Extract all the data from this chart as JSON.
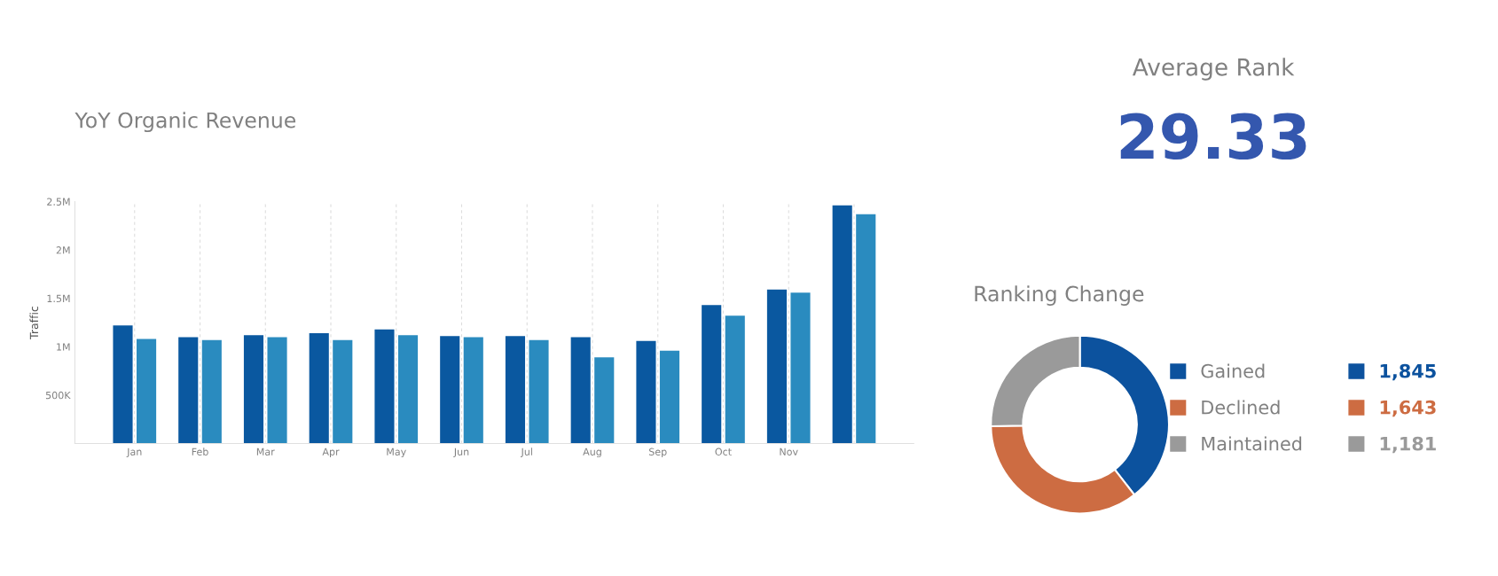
{
  "chart_data": [
    {
      "type": "bar",
      "title": "YoY Organic Revenue",
      "ylabel": "Traffic",
      "categories": [
        "Jan",
        "Feb",
        "Mar",
        "Apr",
        "May",
        "Jun",
        "Jul",
        "Aug",
        "Sep",
        "Oct",
        "Nov",
        null
      ],
      "series": [
        {
          "color": "#0a58a0",
          "values": [
            1220000,
            1100000,
            1120000,
            1140000,
            1180000,
            1110000,
            1110000,
            1100000,
            1060000,
            1430000,
            1590000,
            2460000
          ]
        },
        {
          "color": "#2a8bbf",
          "values": [
            1080000,
            1070000,
            1100000,
            1070000,
            1120000,
            1100000,
            1070000,
            890000,
            960000,
            1320000,
            1560000,
            2370000
          ]
        }
      ],
      "ylim": [
        0,
        2500000
      ],
      "yticks": [
        {
          "value": 500000,
          "label": "500K"
        },
        {
          "value": 1000000,
          "label": "1M"
        },
        {
          "value": 1500000,
          "label": "1.5M"
        },
        {
          "value": 2000000,
          "label": "2M"
        },
        {
          "value": 2500000,
          "label": "2.5M"
        }
      ],
      "grid": "x"
    },
    {
      "type": "other",
      "title": "Average Rank",
      "values": [
        29.33
      ],
      "color": "#3457ae",
      "data_labels": true
    },
    {
      "type": "donut",
      "title": "Ranking Change",
      "categories": [
        "Gained",
        "Declined",
        "Maintained"
      ],
      "values": [
        1845,
        1643,
        1181
      ],
      "colors": [
        "#0c529e",
        "#cd6c42",
        "#9a9a9a"
      ],
      "value_labels": [
        "1,845",
        "1,643",
        "1,181"
      ],
      "legend": "right"
    }
  ]
}
